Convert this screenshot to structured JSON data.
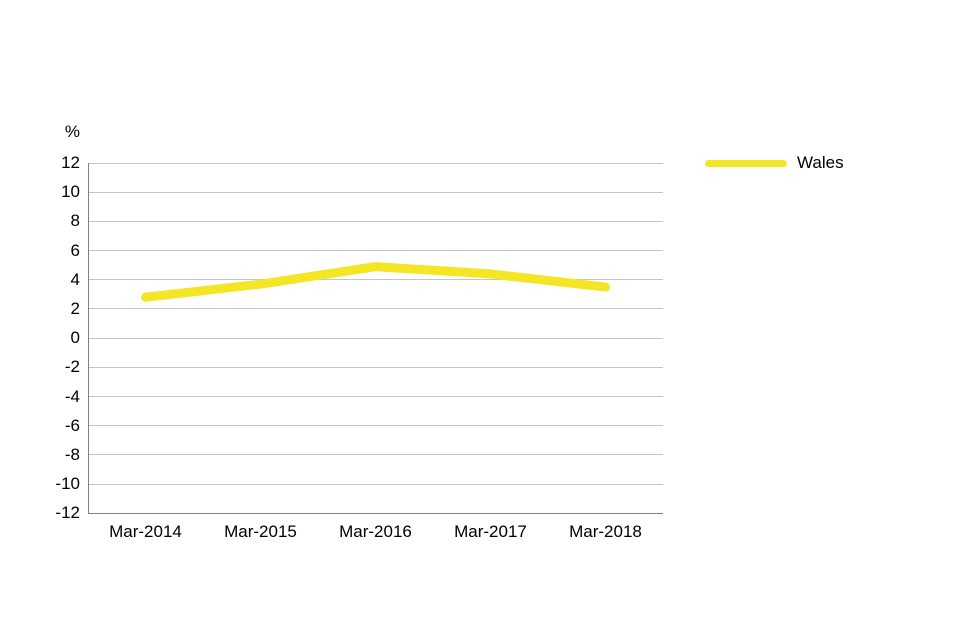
{
  "page": {
    "background": "#FFFFFF"
  },
  "chart_data": {
    "type": "line",
    "title": "",
    "xlabel": "",
    "ylabel": "%",
    "categories": [
      "Mar-2014",
      "Mar-2015",
      "Mar-2016",
      "Mar-2017",
      "Mar-2018"
    ],
    "series": [
      {
        "name": "Wales",
        "color": "#F5E625",
        "values": [
          2.8,
          3.7,
          4.9,
          4.4,
          3.5
        ]
      }
    ],
    "ylim": [
      -12,
      12
    ],
    "ytick_step": 2,
    "yticks": [
      12,
      10,
      8,
      6,
      4,
      2,
      0,
      -2,
      -4,
      -6,
      -8,
      -10,
      -12
    ],
    "grid": true,
    "legend_position": "top-right"
  },
  "colors": {
    "series_yellow": "#F5E625",
    "gridline": "#C4C4C4",
    "axis": "#808080",
    "text": "#000000"
  }
}
